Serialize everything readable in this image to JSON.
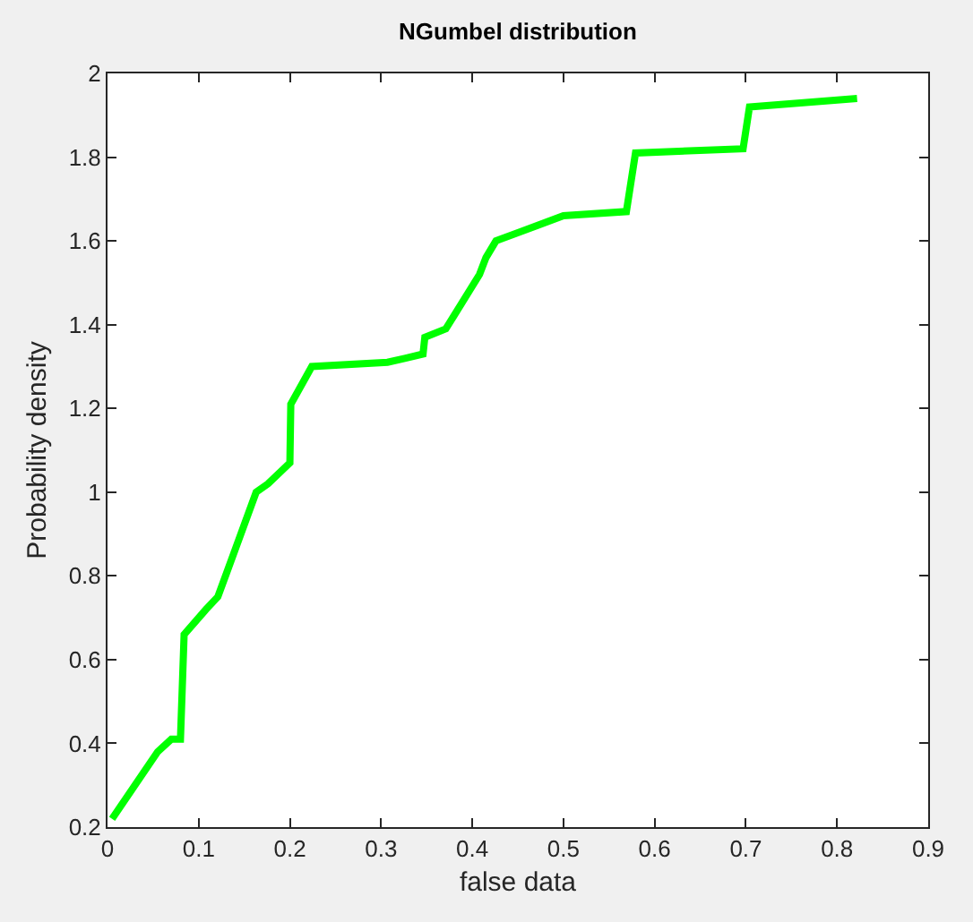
{
  "chart_data": {
    "type": "line",
    "title": "NGumbel distribution",
    "xlabel": "false data",
    "ylabel": "Probability density",
    "x": [
      0.005,
      0.055,
      0.07,
      0.08,
      0.084,
      0.108,
      0.121,
      0.163,
      0.176,
      0.2,
      0.201,
      0.224,
      0.307,
      0.327,
      0.346,
      0.348,
      0.371,
      0.408,
      0.415,
      0.426,
      0.5,
      0.569,
      0.579,
      0.697,
      0.704,
      0.822
    ],
    "series": [
      {
        "color": "#00ff00",
        "values": [
          0.22,
          0.38,
          0.41,
          0.41,
          0.66,
          0.72,
          0.75,
          1.0,
          1.02,
          1.07,
          1.21,
          1.3,
          1.31,
          1.32,
          1.33,
          1.37,
          1.39,
          1.52,
          1.56,
          1.6,
          1.66,
          1.67,
          1.81,
          1.82,
          1.92,
          1.94
        ]
      }
    ],
    "xlim": [
      0,
      0.9
    ],
    "xticks": [
      0,
      0.1,
      0.2,
      0.3,
      0.4,
      0.5,
      0.6,
      0.7,
      0.8,
      0.9
    ],
    "ylim": [
      0.2,
      2
    ],
    "yticks": [
      0.2,
      0.4,
      0.6,
      0.8,
      1,
      1.2,
      1.4,
      1.6,
      1.8,
      2
    ],
    "grid": false,
    "marker": "none",
    "line_style": "solid"
  }
}
